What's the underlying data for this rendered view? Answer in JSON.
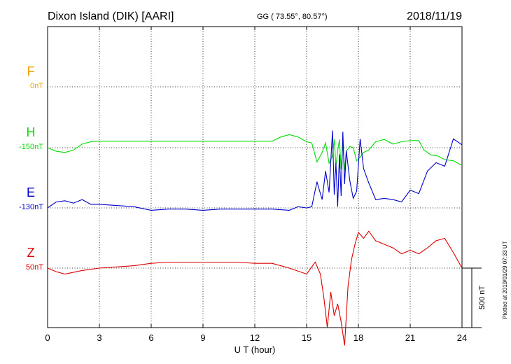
{
  "chart_data": {
    "type": "line",
    "title": "Dixon Island (DIK)  [AARI]",
    "coords": "GG ( 73.55°,  80.57°)",
    "date": "2018/11/19",
    "xlabel": "U T (hour)",
    "xlim": [
      0,
      24
    ],
    "x_ticks": [
      "0",
      "3",
      "6",
      "9",
      "12",
      "15",
      "18",
      "21",
      "24"
    ],
    "grid": true,
    "scale_label": "500 nT",
    "plotted_note": "Plotted at 2019/01/29 07:33 UT",
    "colors": {
      "F": "#f0a000",
      "H": "#00dd00",
      "E": "#0000cc",
      "Z": "#dd0000",
      "frame": "#000000"
    },
    "series": [
      {
        "name": "F",
        "baseline": "0nT",
        "x": [],
        "values": []
      },
      {
        "name": "H",
        "baseline": "-150nT",
        "x": [
          0,
          0.5,
          1,
          1.5,
          2,
          2.5,
          3,
          4,
          5,
          6,
          7,
          8,
          9,
          10,
          11,
          12,
          13,
          13.5,
          14,
          14.5,
          15,
          15.3,
          15.6,
          15.9,
          16.1,
          16.3,
          16.5,
          16.6,
          16.7,
          16.8,
          16.9,
          17.0,
          17.1,
          17.2,
          17.3,
          17.5,
          17.7,
          17.9,
          18.1,
          18.3,
          18.6,
          19,
          19.5,
          20,
          20.5,
          21,
          21.5,
          21.8,
          22.2,
          22.6,
          23,
          23.5,
          24
        ],
        "values": [
          -150,
          -180,
          -190,
          -170,
          -120,
          -100,
          -95,
          -95,
          -95,
          -95,
          -95,
          -95,
          -95,
          -95,
          -95,
          -95,
          -95,
          -60,
          -40,
          -60,
          -100,
          -110,
          -270,
          -190,
          -110,
          -280,
          -220,
          -80,
          -300,
          -180,
          -80,
          -330,
          -120,
          -340,
          -180,
          -140,
          -150,
          -260,
          -230,
          -190,
          -170,
          -100,
          -80,
          -120,
          -100,
          -90,
          -90,
          -170,
          -210,
          -220,
          -250,
          -260,
          -300
        ]
      },
      {
        "name": "E",
        "baseline": "-130nT",
        "x": [
          0,
          0.5,
          1,
          1.5,
          2,
          2.5,
          3,
          4,
          5,
          6,
          7,
          8,
          9,
          10,
          11,
          12,
          13,
          14,
          14.5,
          15,
          15.3,
          15.6,
          15.9,
          16.1,
          16.3,
          16.5,
          16.6,
          16.7,
          16.8,
          16.9,
          17.0,
          17.1,
          17.2,
          17.3,
          17.5,
          17.7,
          17.9,
          18.1,
          18.3,
          18.6,
          19,
          19.5,
          20,
          20.5,
          21,
          21.5,
          22,
          22.5,
          23,
          23.5,
          24
        ],
        "values": [
          -130,
          -80,
          -70,
          -90,
          -60,
          -100,
          -100,
          -110,
          -120,
          -150,
          -140,
          -140,
          -150,
          -140,
          -140,
          -140,
          -140,
          -150,
          -120,
          -130,
          -120,
          90,
          -60,
          180,
          0,
          520,
          -20,
          250,
          -120,
          320,
          -30,
          510,
          70,
          350,
          100,
          -50,
          10,
          450,
          200,
          80,
          -60,
          -50,
          -60,
          -80,
          20,
          -10,
          180,
          250,
          220,
          450,
          400
        ]
      },
      {
        "name": "Z",
        "baseline": "50nT",
        "x": [
          0,
          0.5,
          1,
          2,
          3,
          4,
          5,
          6,
          7,
          8,
          9,
          10,
          11,
          12,
          13,
          14,
          15,
          15.5,
          15.8,
          16.0,
          16.2,
          16.4,
          16.6,
          16.8,
          17.0,
          17.2,
          17.4,
          17.6,
          17.8,
          18.0,
          18.3,
          18.6,
          19,
          19.5,
          20,
          20.5,
          21,
          21.5,
          22,
          22.5,
          23,
          23.5,
          24
        ],
        "values": [
          50,
          20,
          0,
          30,
          50,
          60,
          70,
          90,
          100,
          100,
          100,
          100,
          100,
          90,
          90,
          50,
          0,
          100,
          0,
          -200,
          -450,
          -150,
          -350,
          -250,
          -400,
          -600,
          -100,
          120,
          250,
          350,
          300,
          360,
          280,
          250,
          220,
          170,
          200,
          170,
          220,
          280,
          300,
          180,
          50
        ]
      }
    ]
  }
}
